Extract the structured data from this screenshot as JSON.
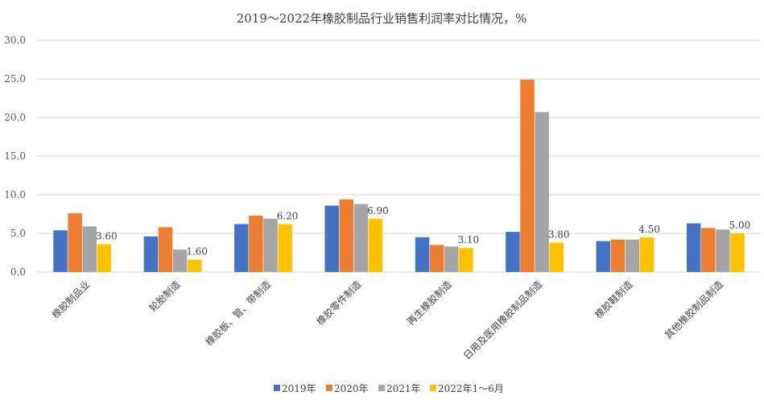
{
  "chart_data": {
    "type": "bar",
    "title": "2019～2022年橡胶制品行业销售利润率对比情况，%",
    "xlabel": "",
    "ylabel": "",
    "ylim": [
      0,
      30
    ],
    "yticks": [
      "0.0",
      "5.0",
      "10.0",
      "15.0",
      "20.0",
      "25.0",
      "30.0"
    ],
    "grid": true,
    "legend_position": "bottom",
    "categories": [
      "橡胶制品业",
      "轮胎制造",
      "橡胶板、管、带制造",
      "橡胶零件制造",
      "再生橡胶制造",
      "日用及医用橡胶制品制造",
      "橡胶鞋制造",
      "其他橡胶制品制造"
    ],
    "series": [
      {
        "name": "2019年",
        "color": "#4472c4",
        "values": [
          5.4,
          4.6,
          6.2,
          8.6,
          4.5,
          5.2,
          4.0,
          6.3
        ]
      },
      {
        "name": "2020年",
        "color": "#ed7d31",
        "values": [
          7.6,
          5.8,
          7.3,
          9.4,
          3.5,
          24.9,
          4.2,
          5.7
        ]
      },
      {
        "name": "2021年",
        "color": "#a5a5a5",
        "values": [
          5.9,
          2.9,
          6.9,
          8.8,
          3.3,
          20.7,
          4.2,
          5.5
        ]
      },
      {
        "name": "2022年1～6月",
        "color": "#ffc000",
        "values": [
          3.6,
          1.6,
          6.2,
          6.9,
          3.1,
          3.8,
          4.5,
          5.0
        ]
      }
    ],
    "data_labels": {
      "series_index": 3,
      "labels": [
        "3.60",
        "1.60",
        "6.20",
        "6.90",
        "3.10",
        "3.80",
        "4.50",
        "5.00"
      ]
    }
  }
}
